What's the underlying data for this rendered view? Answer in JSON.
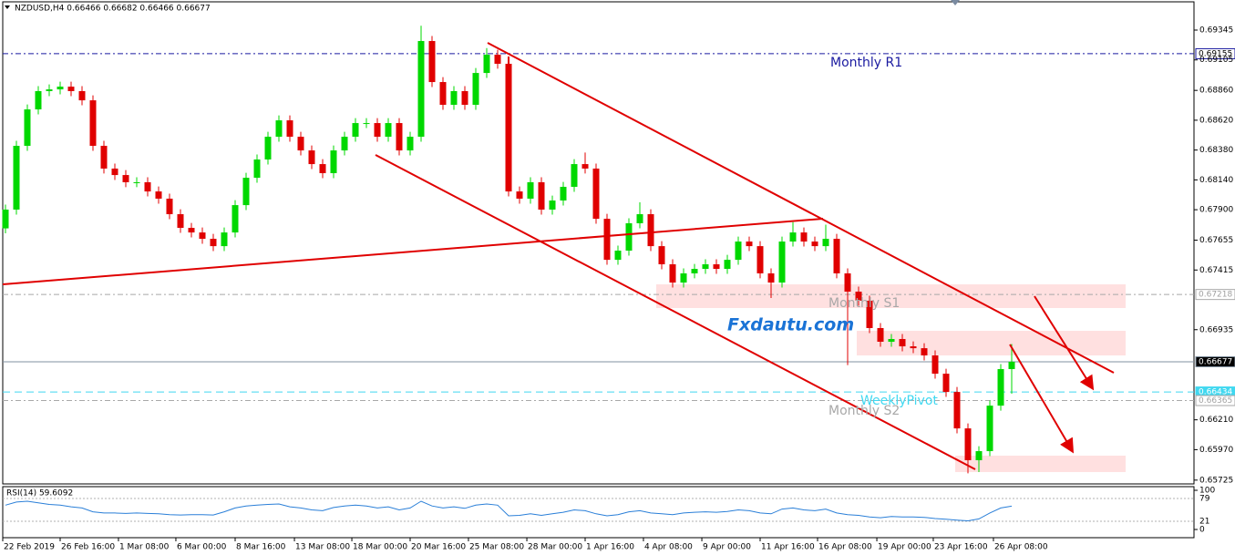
{
  "chart_data": {
    "type": "candlestick",
    "title": "NZDUSD,H4  0.66466 0.66682 0.66466 0.66677",
    "watermark": "Fxdautu.com",
    "up_color": "#00d800",
    "down_color": "#e00000",
    "xlim": [
      -0.5,
      108.5
    ],
    "ylim": [
      0.65687,
      0.69587
    ],
    "xticks": [
      {
        "value": -0.25,
        "label": "22 Feb 2019"
      },
      {
        "value": 5,
        "label": "26 Feb 16:00"
      },
      {
        "value": 10.33,
        "label": "1 Mar 08:00"
      },
      {
        "value": 15.58,
        "label": "6 Mar 00:00"
      },
      {
        "value": 21,
        "label": "8 Mar 16:00"
      },
      {
        "value": 26.42,
        "label": "13 Mar 08:00"
      },
      {
        "value": 31.67,
        "label": "18 Mar 00:00"
      },
      {
        "value": 37,
        "label": "20 Mar 16:00"
      },
      {
        "value": 42.33,
        "label": "25 Mar 08:00"
      },
      {
        "value": 47.67,
        "label": "28 Mar 00:00"
      },
      {
        "value": 53,
        "label": "1 Apr 16:00"
      },
      {
        "value": 58.33,
        "label": "4 Apr 08:00"
      },
      {
        "value": 63.67,
        "label": "9 Apr 00:00"
      },
      {
        "value": 69,
        "label": "11 Apr 16:00"
      },
      {
        "value": 74.25,
        "label": "16 Apr 08:00"
      },
      {
        "value": 79.67,
        "label": "19 Apr 00:00"
      },
      {
        "value": 84.83,
        "label": "23 Apr 16:00"
      },
      {
        "value": 90.33,
        "label": "26 Apr 08:00"
      }
    ],
    "yticks": [
      {
        "value": 0.69345,
        "label": "0.69345"
      },
      {
        "value": 0.69105,
        "label": "0.69105"
      },
      {
        "value": 0.6886,
        "label": "0.68860"
      },
      {
        "value": 0.6862,
        "label": "0.68620"
      },
      {
        "value": 0.6838,
        "label": "0.68380"
      },
      {
        "value": 0.6814,
        "label": "0.68140"
      },
      {
        "value": 0.679,
        "label": "0.67900"
      },
      {
        "value": 0.67655,
        "label": "0.67655"
      },
      {
        "value": 0.67415,
        "label": "0.67415"
      },
      {
        "value": 0.66935,
        "label": "0.66935"
      },
      {
        "value": 0.6621,
        "label": "0.66210"
      },
      {
        "value": 0.6597,
        "label": "0.65970"
      },
      {
        "value": 0.65725,
        "label": "0.65725"
      }
    ],
    "levels": [
      {
        "label": "Monthly R1",
        "value": 0.69155,
        "color": "#1a1aa0",
        "tag_bg": "#ffffff",
        "tag_fg": "#000000",
        "dash": "6 3 2 3"
      },
      {
        "label": "Monthly S1",
        "value": 0.67218,
        "color": "#a8a8a8",
        "tag_bg": "#ffffff",
        "tag_fg": "#a0a0a0",
        "dash": "6 3 2 3"
      },
      {
        "value": 0.66677,
        "color": "#8090a0",
        "tag_bg": "#000000",
        "tag_fg": "#ffffff",
        "dash": "none"
      },
      {
        "label": "WeeklyPivot",
        "value": 0.66434,
        "color": "#40d8f0",
        "tag_bg": "#40d8f0",
        "tag_fg": "#ffffff",
        "dash": "8 5"
      },
      {
        "label": "Monthly S2",
        "value": 0.66365,
        "color": "#a8a8a8",
        "tag_bg": "#ffffff",
        "tag_fg": "#a0a0a0",
        "dash": "6 3 2 3"
      }
    ],
    "open": [
      0.6775,
      0.67901,
      0.68414,
      0.68707,
      0.68854,
      0.68868,
      0.6889,
      0.68854,
      0.6878,
      0.68414,
      0.68231,
      0.68179,
      0.68121,
      0.68121,
      0.68047,
      0.67989,
      0.67864,
      0.67754,
      0.67717,
      0.67666,
      0.67607,
      0.67717,
      0.67937,
      0.68157,
      0.68304,
      0.68487,
      0.68619,
      0.68487,
      0.68377,
      0.68267,
      0.68194,
      0.68377,
      0.68487,
      0.68597,
      0.68597,
      0.68487,
      0.68597,
      0.68377,
      0.68487,
      0.69257,
      0.68927,
      0.68744,
      0.68854,
      0.68744,
      0.69,
      0.69147,
      0.69074,
      0.68047,
      0.67989,
      0.68121,
      0.67901,
      0.67974,
      0.68084,
      0.68267,
      0.68231,
      0.67827,
      0.67497,
      0.67571,
      0.67791,
      0.67864,
      0.67607,
      0.67461,
      0.67314,
      0.67388,
      0.67424,
      0.67461,
      0.67424,
      0.67497,
      0.67644,
      0.67607,
      0.67388,
      0.67314,
      0.67644,
      0.67717,
      0.67644,
      0.67607,
      0.67666,
      0.67388,
      0.67241,
      0.67168,
      0.66948,
      0.66838,
      0.6686,
      0.66801,
      0.66786,
      0.66728,
      0.66581,
      0.66434,
      0.66141,
      0.65885,
      0.65958,
      0.66324,
      0.66618
    ],
    "high": [
      0.67941,
      0.68454,
      0.68747,
      0.68894,
      0.68908,
      0.6893,
      0.6893,
      0.68894,
      0.6882,
      0.68454,
      0.68271,
      0.68219,
      0.68161,
      0.68161,
      0.68087,
      0.68029,
      0.67904,
      0.67794,
      0.67757,
      0.67706,
      0.67757,
      0.67977,
      0.68197,
      0.68344,
      0.68527,
      0.68659,
      0.68659,
      0.68527,
      0.68417,
      0.68307,
      0.68417,
      0.68527,
      0.68637,
      0.68637,
      0.68637,
      0.68637,
      0.68637,
      0.68527,
      0.6938,
      0.69297,
      0.68967,
      0.68894,
      0.68894,
      0.6904,
      0.692,
      0.69187,
      0.69114,
      0.68087,
      0.68161,
      0.68161,
      0.68014,
      0.68124,
      0.68307,
      0.6836,
      0.68271,
      0.67867,
      0.67611,
      0.67831,
      0.6796,
      0.67904,
      0.67647,
      0.67501,
      0.67428,
      0.67464,
      0.67501,
      0.67501,
      0.67537,
      0.67684,
      0.67684,
      0.67647,
      0.67428,
      0.67684,
      0.678,
      0.67757,
      0.67684,
      0.6778,
      0.67706,
      0.67428,
      0.67281,
      0.67208,
      0.66988,
      0.669,
      0.669,
      0.66841,
      0.66826,
      0.66768,
      0.66621,
      0.66474,
      0.66181,
      0.65998,
      0.66364,
      0.66658,
      0.6682
    ],
    "low": [
      0.6771,
      0.67861,
      0.68374,
      0.68667,
      0.68814,
      0.68828,
      0.68814,
      0.6874,
      0.68374,
      0.68191,
      0.68139,
      0.68081,
      0.68081,
      0.68007,
      0.67949,
      0.67824,
      0.67714,
      0.67677,
      0.67626,
      0.67567,
      0.67567,
      0.67677,
      0.67897,
      0.68117,
      0.68264,
      0.68447,
      0.68447,
      0.68337,
      0.68227,
      0.68154,
      0.68154,
      0.68337,
      0.68447,
      0.68557,
      0.68447,
      0.68447,
      0.68337,
      0.68337,
      0.68447,
      0.68887,
      0.68704,
      0.68704,
      0.68704,
      0.68704,
      0.6896,
      0.69034,
      0.68007,
      0.67949,
      0.67949,
      0.67861,
      0.67861,
      0.67934,
      0.68044,
      0.68191,
      0.67787,
      0.67457,
      0.67457,
      0.67531,
      0.67751,
      0.67567,
      0.67421,
      0.67274,
      0.67274,
      0.67348,
      0.67384,
      0.67384,
      0.67384,
      0.67457,
      0.67567,
      0.67348,
      0.6719,
      0.67274,
      0.67604,
      0.67604,
      0.67567,
      0.67567,
      0.67348,
      0.6665,
      0.67128,
      0.66908,
      0.66798,
      0.66798,
      0.66761,
      0.66746,
      0.66688,
      0.66541,
      0.66394,
      0.66101,
      0.6578,
      0.6579,
      0.65918,
      0.66284,
      0.6642
    ],
    "close": [
      0.67901,
      0.68414,
      0.68707,
      0.68854,
      0.68868,
      0.6889,
      0.68854,
      0.6878,
      0.68414,
      0.68231,
      0.68179,
      0.68121,
      0.68121,
      0.68047,
      0.67989,
      0.67864,
      0.67754,
      0.67717,
      0.67666,
      0.67607,
      0.67717,
      0.67937,
      0.68157,
      0.68304,
      0.68487,
      0.68619,
      0.68487,
      0.68377,
      0.68267,
      0.68194,
      0.68377,
      0.68487,
      0.68597,
      0.68597,
      0.68487,
      0.68597,
      0.68377,
      0.68487,
      0.69257,
      0.68927,
      0.68744,
      0.68854,
      0.68744,
      0.69,
      0.69147,
      0.69074,
      0.68047,
      0.67989,
      0.68121,
      0.67901,
      0.67974,
      0.68084,
      0.68267,
      0.68231,
      0.67827,
      0.67497,
      0.67571,
      0.67791,
      0.67864,
      0.67607,
      0.67461,
      0.67314,
      0.67388,
      0.67424,
      0.67461,
      0.67424,
      0.67497,
      0.67644,
      0.67607,
      0.67388,
      0.67314,
      0.67644,
      0.67717,
      0.67644,
      0.67607,
      0.67666,
      0.67388,
      0.67241,
      0.67168,
      0.66948,
      0.66838,
      0.6686,
      0.66801,
      0.66786,
      0.66728,
      0.66581,
      0.66434,
      0.66141,
      0.65885,
      0.65958,
      0.66324,
      0.66618,
      0.66677
    ],
    "rsi": {
      "name": "RSI(14) 59.6092",
      "color": "#2a7fd8",
      "ylim": [
        0,
        100
      ],
      "yticks": [
        0,
        21,
        79,
        100
      ],
      "values": [
        62,
        70,
        72,
        68,
        64,
        62,
        58,
        55,
        45,
        42,
        42,
        41,
        42,
        41,
        40,
        38,
        37,
        38,
        38,
        37,
        45,
        55,
        60,
        62,
        64,
        65,
        58,
        55,
        50,
        48,
        56,
        60,
        62,
        60,
        55,
        58,
        50,
        55,
        72,
        60,
        55,
        58,
        54,
        62,
        65,
        62,
        35,
        36,
        40,
        36,
        40,
        44,
        50,
        48,
        40,
        35,
        38,
        45,
        48,
        42,
        40,
        38,
        42,
        44,
        45,
        44,
        46,
        50,
        48,
        42,
        40,
        52,
        55,
        50,
        48,
        52,
        42,
        38,
        36,
        32,
        30,
        33,
        32,
        32,
        31,
        28,
        26,
        24,
        22,
        27,
        42,
        55,
        59.61
      ]
    }
  }
}
